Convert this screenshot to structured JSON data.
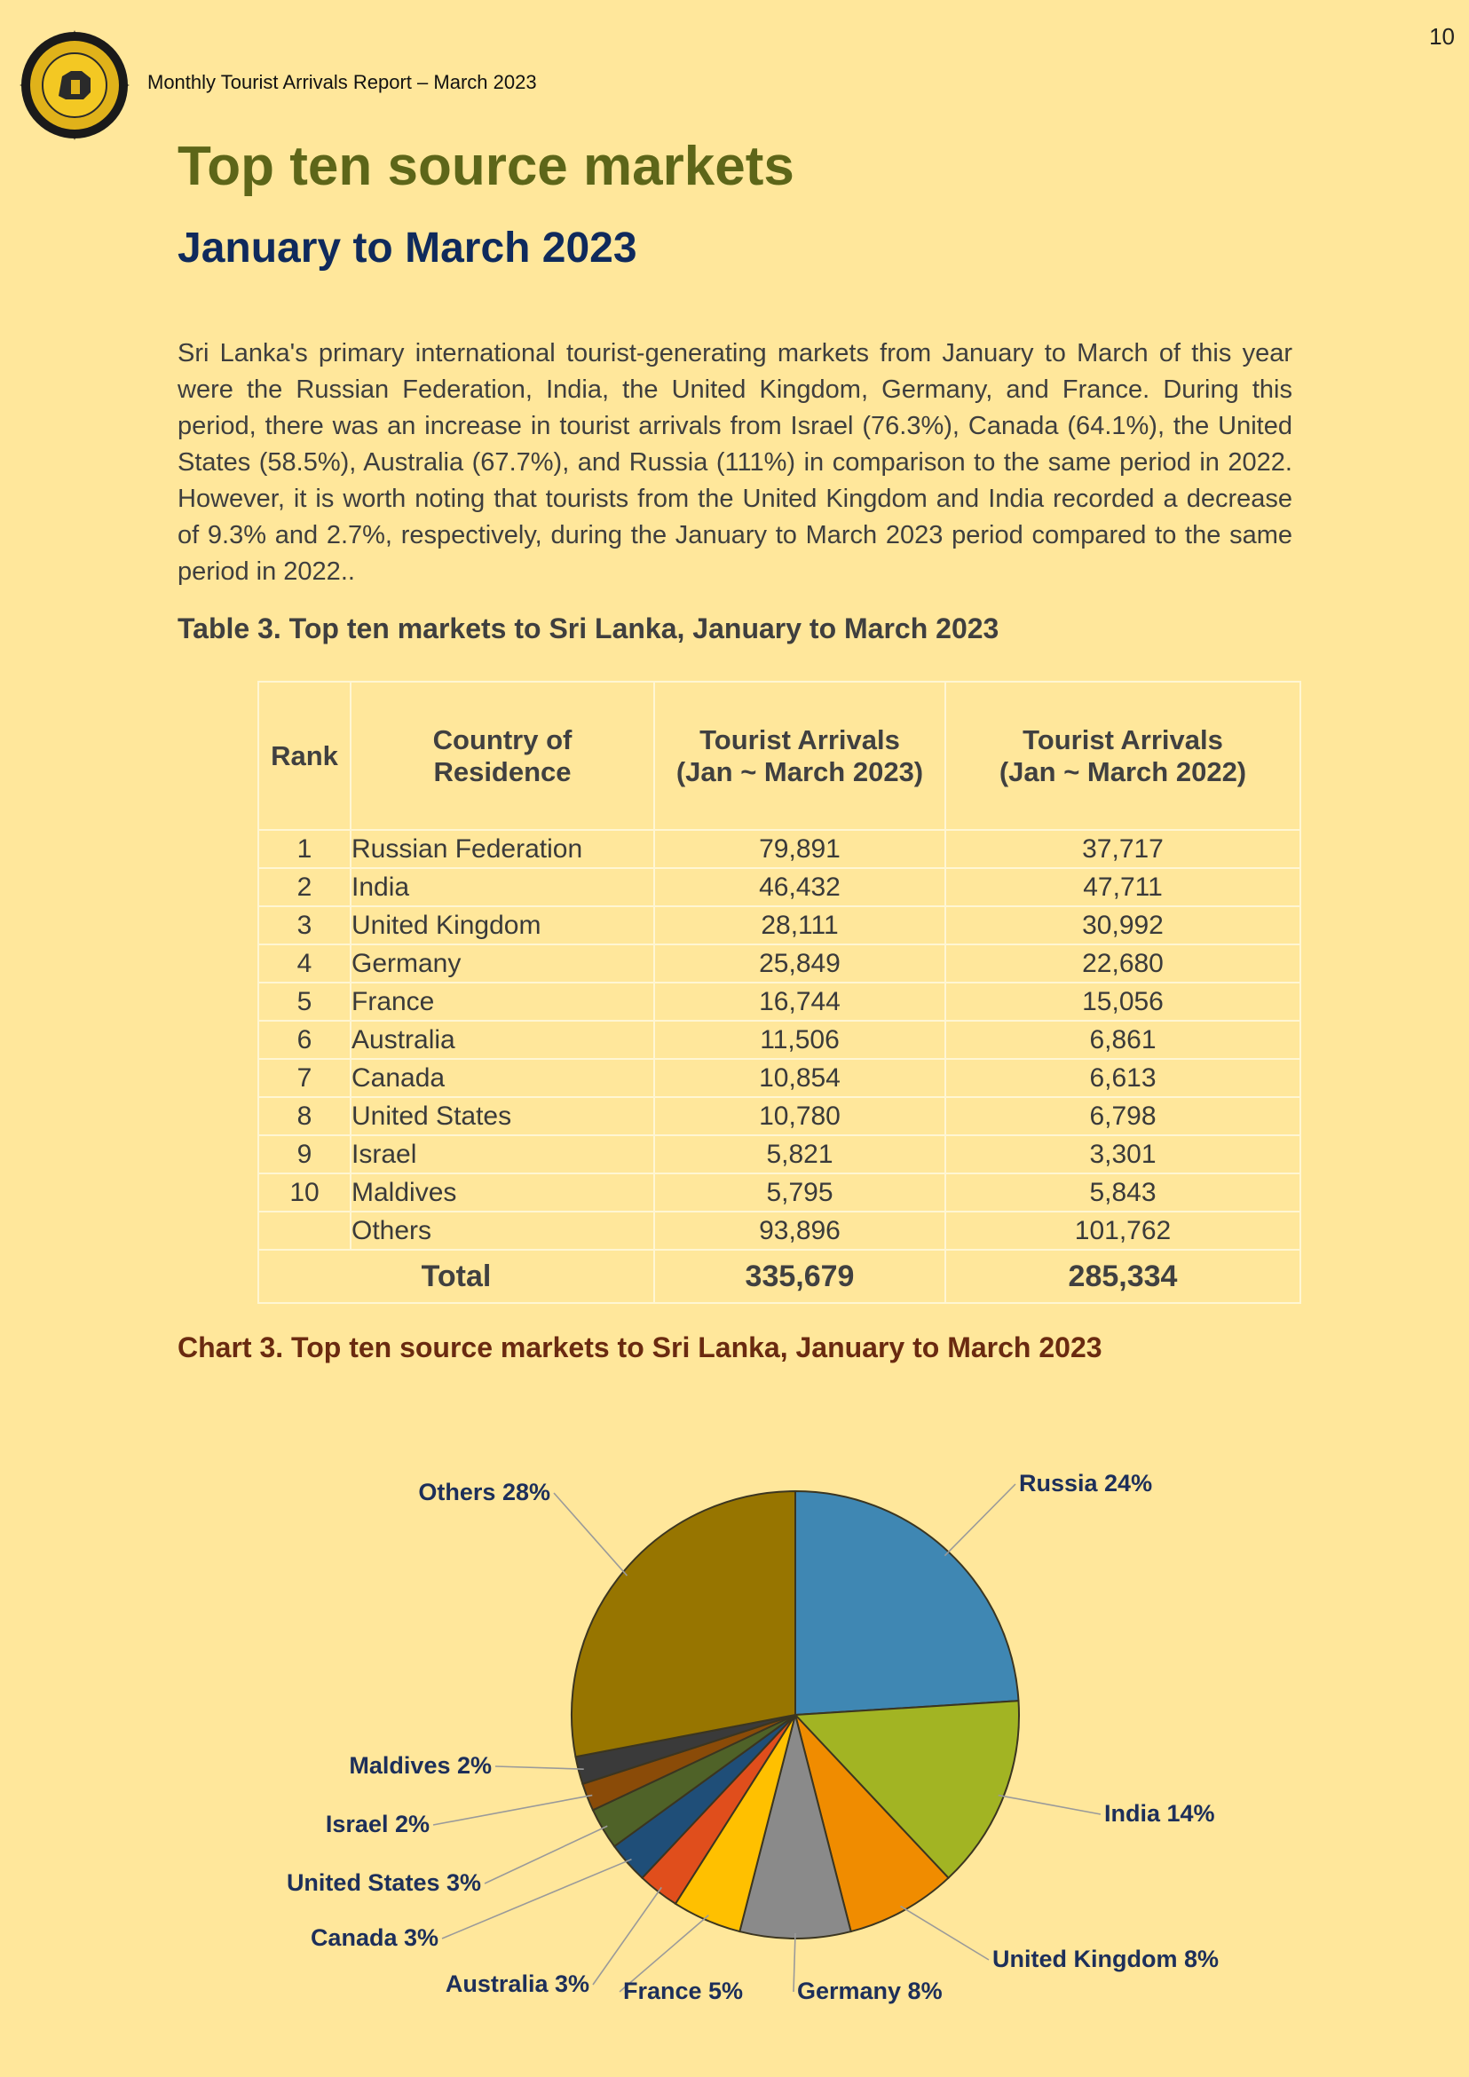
{
  "page_number": "10",
  "header": {
    "report_title": "Monthly Tourist Arrivals Report – March  2023"
  },
  "title": "Top ten source markets",
  "subtitle": "January to March 2023",
  "body_text": "Sri Lanka's primary international tourist-generating markets from January to March of this year were the Russian Federation, India, the United Kingdom, Germany, and France. During this period, there was an increase in tourist arrivals from Israel (76.3%), Canada (64.1%), the United States (58.5%), Australia (67.7%), and Russia (111%) in comparison to the same period in 2022. However, it is worth noting that tourists from the United Kingdom and India recorded a decrease of 9.3% and 2.7%, respectively, during the January to March 2023 period compared to the same period in 2022..",
  "table": {
    "caption": "Table 3. Top ten markets to Sri Lanka, January to March  2023",
    "headers": {
      "rank": "Rank",
      "country_line1": "Country of",
      "country_line2": "Residence",
      "arrivals_2023_line1": "Tourist Arrivals",
      "arrivals_2023_line2": "(Jan ~ March  2023)",
      "arrivals_2022_line1": "Tourist Arrivals",
      "arrivals_2022_line2": "(Jan ~ March 2022)"
    },
    "rows": [
      {
        "rank": "1",
        "country": "Russian Federation",
        "y2023": "79,891",
        "y2022": "37,717"
      },
      {
        "rank": "2",
        "country": "India",
        "y2023": "46,432",
        "y2022": "47,711"
      },
      {
        "rank": "3",
        "country": "United Kingdom",
        "y2023": "28,111",
        "y2022": "30,992"
      },
      {
        "rank": "4",
        "country": "Germany",
        "y2023": "25,849",
        "y2022": "22,680"
      },
      {
        "rank": "5",
        "country": "France",
        "y2023": "16,744",
        "y2022": "15,056"
      },
      {
        "rank": "6",
        "country": "Australia",
        "y2023": "11,506",
        "y2022": "6,861"
      },
      {
        "rank": "7",
        "country": "Canada",
        "y2023": "10,854",
        "y2022": "6,613"
      },
      {
        "rank": "8",
        "country": "United States",
        "y2023": "10,780",
        "y2022": "6,798"
      },
      {
        "rank": "9",
        "country": "Israel",
        "y2023": "5,821",
        "y2022": "3,301"
      },
      {
        "rank": "10",
        "country": "Maldives",
        "y2023": "5,795",
        "y2022": "5,843"
      },
      {
        "rank": "",
        "country": "Others",
        "y2023": "93,896",
        "y2022": "101,762"
      }
    ],
    "total": {
      "label": "Total",
      "y2023": "335,679",
      "y2022": "285,334"
    }
  },
  "chart_caption": "Chart 3. Top ten source markets to Sri Lanka, January to March 2023",
  "chart_data": {
    "type": "pie",
    "title": "",
    "slices": [
      {
        "label": "Russia 24%",
        "value": 24,
        "color": "#3f87b3"
      },
      {
        "label": "India 14%",
        "value": 14,
        "color": "#a2b423"
      },
      {
        "label": "United Kingdom 8%",
        "value": 8,
        "color": "#f08c00"
      },
      {
        "label": "Germany 8%",
        "value": 8,
        "color": "#8a8a8a"
      },
      {
        "label": "France 5%",
        "value": 5,
        "color": "#ffc000"
      },
      {
        "label": "Australia 3%",
        "value": 3,
        "color": "#e04e1c"
      },
      {
        "label": "Canada  3%",
        "value": 3,
        "color": "#1f4e78"
      },
      {
        "label": "United States 3%",
        "value": 3,
        "color": "#4f6228"
      },
      {
        "label": "Israel 2%",
        "value": 2,
        "color": "#8a4b08"
      },
      {
        "label": "Maldives 2%",
        "value": 2,
        "color": "#3a3a3a"
      },
      {
        "label": "Others 28%",
        "value": 28,
        "color": "#977500"
      }
    ]
  }
}
